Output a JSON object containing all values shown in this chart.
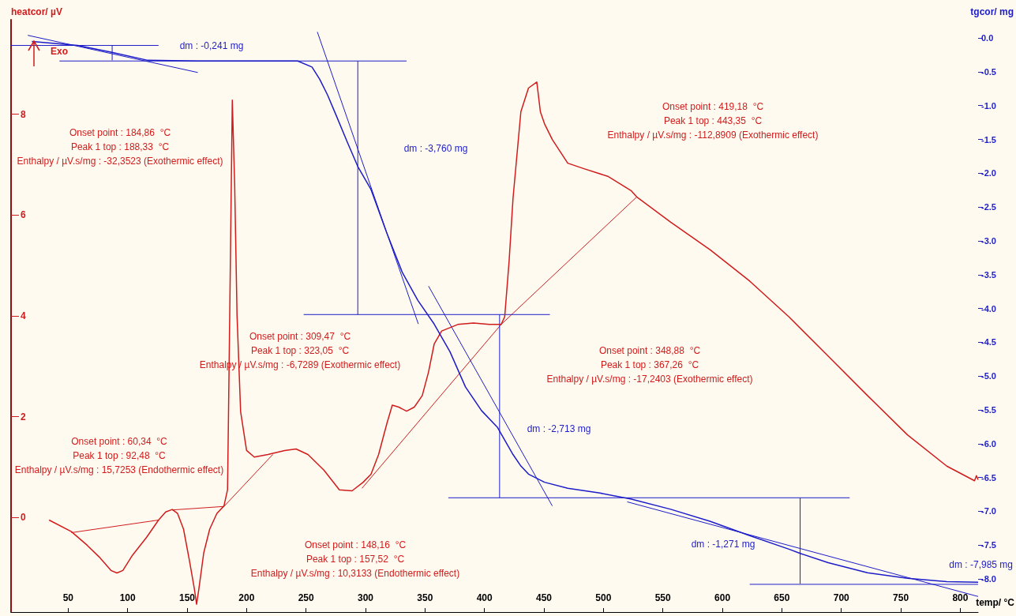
{
  "chart_data": {
    "type": "line",
    "xlabel": "temp/ °C",
    "ylabel": "heatcor/ µV",
    "y2label": "tgcor/ mg",
    "marker": "none",
    "grid": false,
    "xlim": [
      2,
      815
    ],
    "xticks": [
      50,
      100,
      150,
      200,
      250,
      300,
      350,
      400,
      450,
      500,
      550,
      600,
      650,
      700,
      750,
      800
    ],
    "ylim": [
      -1.875,
      9.875
    ],
    "yticks": [
      0,
      2,
      4,
      6,
      8
    ],
    "y2lim": [
      -8.49,
      0.27
    ],
    "y2ticks": [
      {
        "value": 0,
        "label": "0.0"
      },
      {
        "value": -0.5,
        "label": "-0.5"
      },
      {
        "value": -1,
        "label": "-1.0"
      },
      {
        "value": -1.5,
        "label": "-1.5"
      },
      {
        "value": -2,
        "label": "-2.0"
      },
      {
        "value": -2.5,
        "label": "-2.5"
      },
      {
        "value": -3,
        "label": "-3.0"
      },
      {
        "value": -3.5,
        "label": "-3.5"
      },
      {
        "value": -4,
        "label": "-4.0"
      },
      {
        "value": -4.5,
        "label": "-4.5"
      },
      {
        "value": -5,
        "label": "-5.0"
      },
      {
        "value": -5.5,
        "label": "-5.5"
      },
      {
        "value": -6,
        "label": "-6.0"
      },
      {
        "value": -6.5,
        "label": "-6.5"
      },
      {
        "value": -7,
        "label": "-7.0"
      },
      {
        "value": -7.5,
        "label": "-7.5"
      },
      {
        "value": -8,
        "label": "-8.0"
      }
    ],
    "series": [
      {
        "color": "#d01c1c",
        "x": [
          34,
          52.7,
          66,
          76,
          86,
          91,
          96,
          104,
          116,
          126,
          132,
          137.5,
          142,
          147,
          152,
          156,
          158,
          160,
          164,
          169,
          175,
          181,
          184,
          185,
          186.6,
          188,
          190,
          192,
          195,
          200,
          206.5,
          218,
          232,
          241.6,
          251.6,
          265,
          278,
          288.7,
          298,
          304.6,
          311,
          318,
          322.5,
          328,
          334.5,
          341,
          347.7,
          353,
          357.7,
          364,
          377.6,
          390.8,
          404,
          414,
          417,
          420.7,
          424,
          430.6,
          437,
          444,
          447,
          450.5,
          457,
          470,
          483.7,
          503.6,
          523.5,
          528,
          556.6,
          589.8,
          623,
          656,
          689,
          722,
          755.6,
          788.7,
          812,
          813.6,
          815
        ],
        "values": [
          -0.05,
          -0.28,
          -0.55,
          -0.78,
          -1.05,
          -1.1,
          -1.05,
          -0.75,
          -0.39,
          -0.05,
          0.11,
          0.16,
          0.08,
          -0.23,
          -0.86,
          -1.4,
          -1.72,
          -1.4,
          -0.7,
          -0.23,
          0.08,
          0.23,
          0.55,
          2.4,
          5.5,
          8.28,
          6.6,
          4,
          2.1,
          1.33,
          1.2,
          1.25,
          1.33,
          1.36,
          1.25,
          0.94,
          0.55,
          0.53,
          0.7,
          0.86,
          1.25,
          1.87,
          2.23,
          2.19,
          2.11,
          2.19,
          2.42,
          2.89,
          3.44,
          3.7,
          3.83,
          3.86,
          3.83,
          3.83,
          3.98,
          5.08,
          6.33,
          8.05,
          8.52,
          8.64,
          8.05,
          7.81,
          7.5,
          7.03,
          6.92,
          6.77,
          6.48,
          6.36,
          5.86,
          5.31,
          4.69,
          3.98,
          3.2,
          2.42,
          1.64,
          1.02,
          0.73,
          0.83,
          0.75
        ]
      },
      {
        "color": "#1c1cc8",
        "axis": "y2",
        "x": [
          19.5,
          58,
          86,
          117,
          158.8,
          243,
          255,
          261.5,
          268,
          275,
          284.7,
          293.5,
          304.6,
          318,
          331,
          344,
          357.7,
          371,
          384,
          397.5,
          411,
          424,
          430.6,
          437,
          450.5,
          470,
          497,
          523.5,
          556.6,
          590,
          623,
          656,
          665,
          689,
          722,
          755.6,
          788.7,
          815
        ],
        "values": [
          -0.05,
          -0.11,
          -0.21,
          -0.33,
          -0.34,
          -0.34,
          -0.43,
          -0.61,
          -0.84,
          -1.13,
          -1.54,
          -1.9,
          -2.24,
          -2.89,
          -3.47,
          -3.88,
          -4.23,
          -4.64,
          -5.16,
          -5.51,
          -5.76,
          -6.16,
          -6.33,
          -6.45,
          -6.57,
          -6.66,
          -6.73,
          -6.82,
          -6.97,
          -7.15,
          -7.36,
          -7.56,
          -7.62,
          -7.76,
          -7.91,
          -7.99,
          -8.04,
          -8.05
        ]
      },
      {
        "color": "#d01c1c",
        "x": [
          52.7,
          126
        ],
        "values": [
          -0.3,
          -0.05
        ]
      },
      {
        "color": "#d01c1c",
        "x": [
          137.5,
          181,
          222
        ],
        "values": [
          0.15,
          0.22,
          1.25
        ]
      },
      {
        "color": "#d01c1c",
        "x": [
          297,
          414,
          528
        ],
        "values": [
          0.58,
          3.83,
          6.36
        ]
      },
      {
        "color": "#1c1cc8",
        "axis": "y2",
        "x": [
          16,
          159
        ],
        "values": [
          0.04,
          -0.51
        ]
      },
      {
        "color": "#1c1cc8",
        "axis": "y2",
        "x": [
          2,
          126
        ],
        "values": [
          -0.11,
          -0.11
        ]
      },
      {
        "color": "#1c1cc8",
        "axis": "y2",
        "x": [
          87,
          87
        ],
        "values": [
          -0.11,
          -0.33
        ]
      },
      {
        "color": "#1c1cc8",
        "axis": "y2",
        "x": [
          42.7,
          334.5
        ],
        "values": [
          -0.34,
          -0.34
        ]
      },
      {
        "color": "#1c1cc8",
        "axis": "y2",
        "x": [
          293.5,
          293.5
        ],
        "values": [
          -0.34,
          -4.09
        ]
      },
      {
        "color": "#1c1cc8",
        "axis": "y2",
        "x": [
          248,
          455
        ],
        "values": [
          -4.09,
          -4.09
        ]
      },
      {
        "color": "#1c1cc8",
        "axis": "y2",
        "x": [
          259.5,
          344.4
        ],
        "values": [
          0.09,
          -4.23
        ]
      },
      {
        "color": "#1c1cc8",
        "axis": "y2",
        "x": [
          353,
          457
        ],
        "values": [
          -3.67,
          -6.92
        ]
      },
      {
        "color": "#1c1cc8",
        "axis": "y2",
        "x": [
          412.7,
          412.7
        ],
        "values": [
          -4.09,
          -6.8
        ]
      },
      {
        "color": "#1c1cc8",
        "axis": "y2",
        "x": [
          369.6,
          707
        ],
        "values": [
          -6.8,
          -6.8
        ]
      },
      {
        "color": "#1c1cc8",
        "axis": "y2",
        "x": [
          520,
          815
        ],
        "values": [
          -6.86,
          -8.26
        ]
      },
      {
        "color": "#1c1cc8",
        "axis": "y2",
        "x": [
          665.4,
          665.4
        ],
        "values": [
          -6.8,
          -8.07
        ]
      },
      {
        "color": "#1c1cc8",
        "axis": "y2",
        "x": [
          623,
          815
        ],
        "values": [
          -8.08,
          -8.08
        ]
      }
    ],
    "annotations": [
      "Exo",
      "dm : -0,241 mg",
      "Onset point : 184,86  °C\nPeak 1 top : 188,33  °C\nEnthalpy / µV.s/mg : -32,3523 (Exothermic effect)",
      "dm : -3,760 mg",
      "Onset point : 419,18  °C\nPeak 1 top : 443,35  °C\nEnthalpy / µV.s/mg : -112,8909 (Exothermic effect)",
      "Onset point : 309,47  °C\nPeak 1 top : 323,05  °C\nEnthalpy / µV.s/mg : -6,7289 (Exothermic effect)",
      "Onset point : 348,88  °C\nPeak 1 top : 367,26  °C\nEnthalpy / µV.s/mg : -17,2403 (Exothermic effect)",
      "dm : -2,713 mg",
      "Onset point : 60,34  °C\nPeak 1 top : 92,48  °C\nEnthalpy / µV.s/mg : 15,7253 (Endothermic effect)",
      "Onset point : 148,16  °C\nPeak 1 top : 157,52  °C\nEnthalpy / µV.s/mg : 10,3133 (Endothermic effect)",
      "dm : -1,271 mg",
      "dm : -7,985 mg"
    ]
  }
}
